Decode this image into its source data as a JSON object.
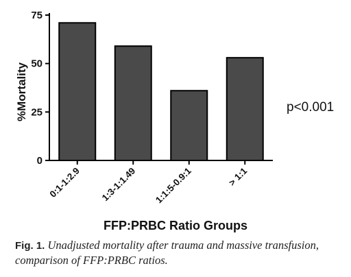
{
  "chart_data": {
    "type": "bar",
    "categories": [
      "0:1-1:2.9",
      "1:3-1:1.49",
      "1:1:5-0.9:1",
      "> 1:1"
    ],
    "values": [
      71,
      59,
      36,
      53
    ],
    "xlabel": "FFP:PRBC Ratio Groups",
    "ylabel": "%Mortality",
    "ylim": [
      0,
      75
    ],
    "yticks": [
      0,
      25,
      50,
      75
    ],
    "grid": false,
    "annotation": "p<0.001"
  },
  "caption": {
    "label": "Fig. 1.",
    "text": "Unadjusted mortality after trauma and massive transfusion, comparison of FFP:PRBC ratios."
  },
  "colors": {
    "bar_fill": "#4a4a4a",
    "bar_stroke": "#000000"
  }
}
